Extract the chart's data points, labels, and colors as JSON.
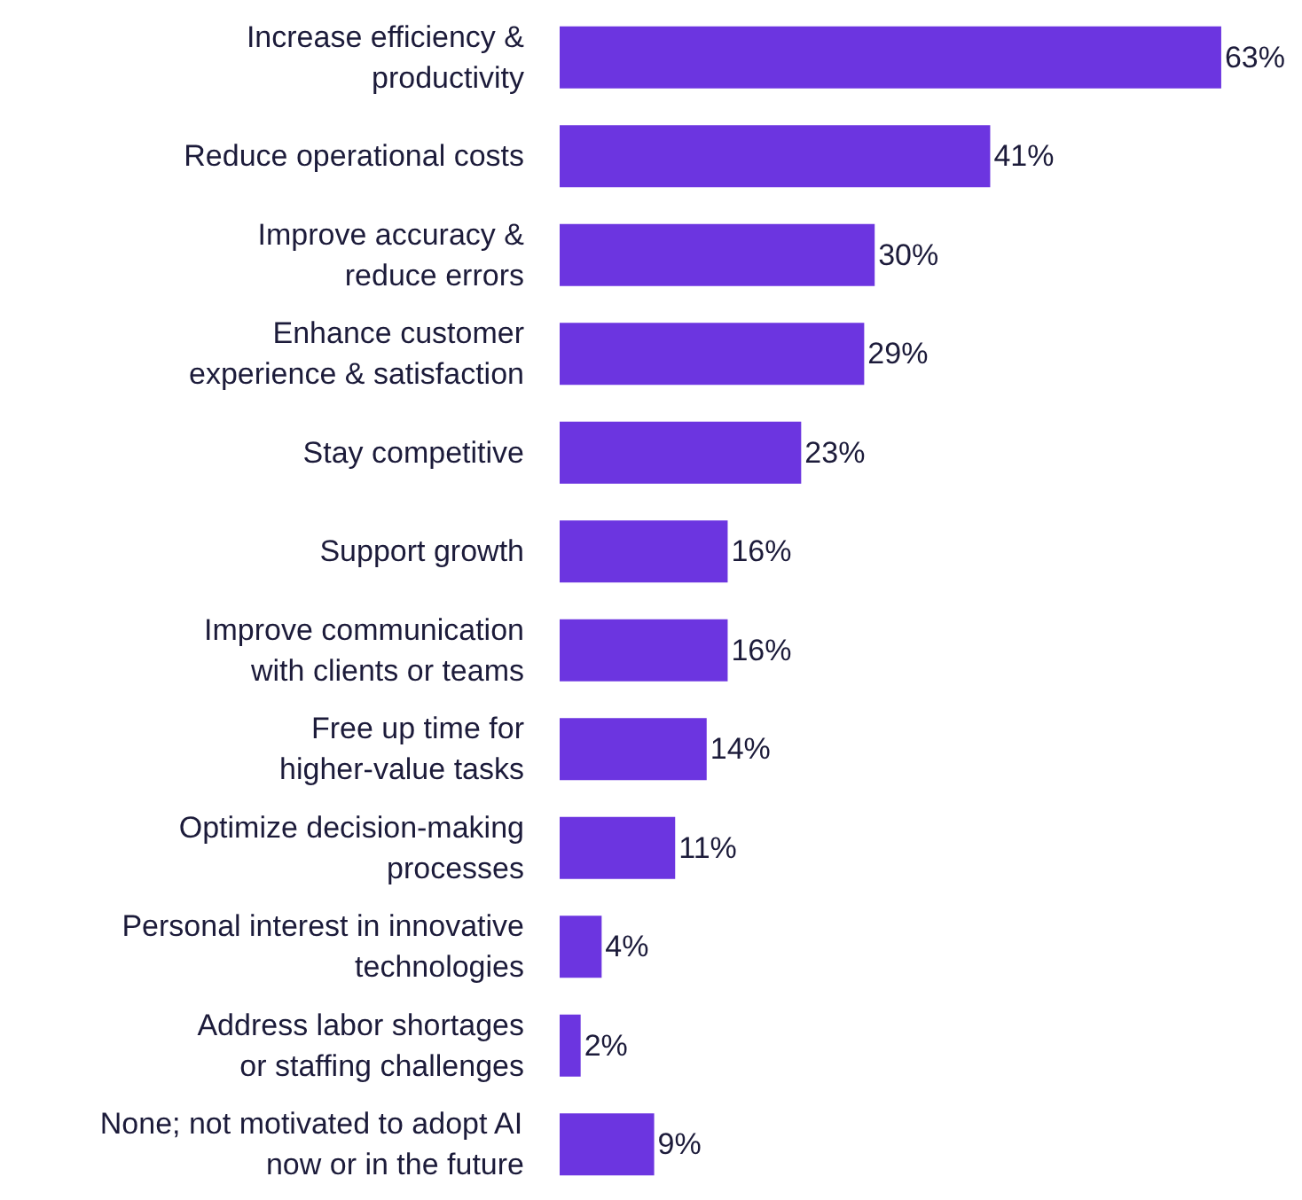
{
  "chart_data": {
    "type": "bar",
    "orientation": "horizontal",
    "categories": [
      "Increase efficiency &\nproductivity",
      "Reduce operational costs",
      "Improve accuracy &\nreduce errors",
      "Enhance customer\nexperience & satisfaction",
      "Stay competitive",
      "Support growth",
      "Improve communication\nwith clients or teams",
      "Free up time for\nhigher-value tasks",
      "Optimize decision-making\nprocesses",
      "Personal interest in innovative\ntechnologies",
      "Address labor shortages\nor staffing challenges",
      "None; not motivated to adopt AI\nnow or in the future"
    ],
    "values": [
      63,
      41,
      30,
      29,
      23,
      16,
      16,
      14,
      11,
      4,
      2,
      9
    ],
    "value_labels": [
      "63%",
      "41%",
      "30%",
      "29%",
      "23%",
      "16%",
      "16%",
      "14%",
      "11%",
      "4%",
      "2%",
      "9%"
    ],
    "color": "#6c35e0"
  }
}
